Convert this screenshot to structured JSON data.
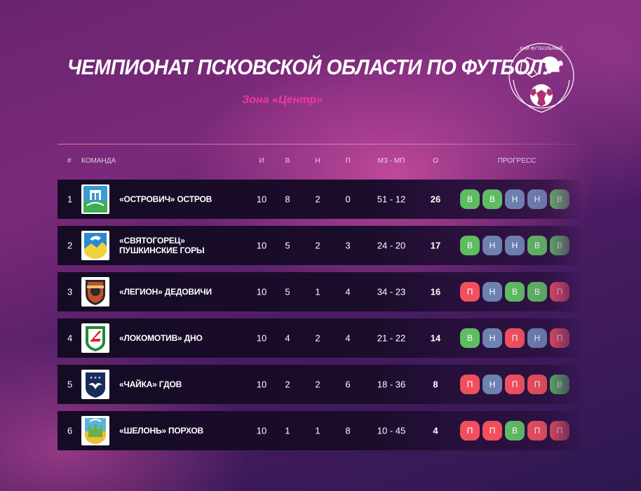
{
  "title": "ЧЕМПИОНАТ ПСКОВСКОЙ ОБЛАСТИ ПО ФУТБОЛУ",
  "subtitle": "Зона «Центр»",
  "logo_text": "...КИЙ ФУТБОЛЬНЫЙ...",
  "headers": {
    "num": "#",
    "team": "КОМАНДА",
    "played": "И",
    "won": "В",
    "drawn": "Н",
    "lost": "П",
    "goals": "МЗ - МП",
    "points": "О",
    "progress": "ПРОГРЕСС"
  },
  "colors": {
    "win": "#5fbc63",
    "draw": "#6d82b0",
    "loss": "#f0505e",
    "accent": "#ea3a9a"
  },
  "rows": [
    {
      "pos": "1",
      "team": "«Острович» Остров",
      "played": "10",
      "won": "8",
      "drawn": "2",
      "lost": "0",
      "goals": "51 - 12",
      "points": "26",
      "form": [
        "В",
        "В",
        "Н",
        "Н",
        "В"
      ],
      "emblem": "ostrov-emblem"
    },
    {
      "pos": "2",
      "team": "«Святогорец» Пушкинские Горы",
      "played": "10",
      "won": "5",
      "drawn": "2",
      "lost": "3",
      "goals": "24 - 20",
      "points": "17",
      "form": [
        "В",
        "Н",
        "Н",
        "В",
        "В"
      ],
      "emblem": "pushkinskie-gory-emblem"
    },
    {
      "pos": "3",
      "team": "«Легион» Дедовичи",
      "played": "10",
      "won": "5",
      "drawn": "1",
      "lost": "4",
      "goals": "34 - 23",
      "points": "16",
      "form": [
        "П",
        "Н",
        "В",
        "В",
        "П"
      ],
      "emblem": "legion-emblem"
    },
    {
      "pos": "4",
      "team": "«Локомотив» Дно",
      "played": "10",
      "won": "4",
      "drawn": "2",
      "lost": "4",
      "goals": "21 - 22",
      "points": "14",
      "form": [
        "В",
        "Н",
        "П",
        "Н",
        "П"
      ],
      "emblem": "lokomotiv-emblem"
    },
    {
      "pos": "5",
      "team": "«Чайка» Гдов",
      "played": "10",
      "won": "2",
      "drawn": "2",
      "lost": "6",
      "goals": "18 - 36",
      "points": "8",
      "form": [
        "П",
        "Н",
        "П",
        "П",
        "В"
      ],
      "emblem": "chaika-emblem"
    },
    {
      "pos": "6",
      "team": "«Шелонь» Порхов",
      "played": "10",
      "won": "1",
      "drawn": "1",
      "lost": "8",
      "goals": "10 - 45",
      "points": "4",
      "form": [
        "П",
        "П",
        "В",
        "П",
        "П"
      ],
      "emblem": "porkhov-emblem"
    }
  ]
}
